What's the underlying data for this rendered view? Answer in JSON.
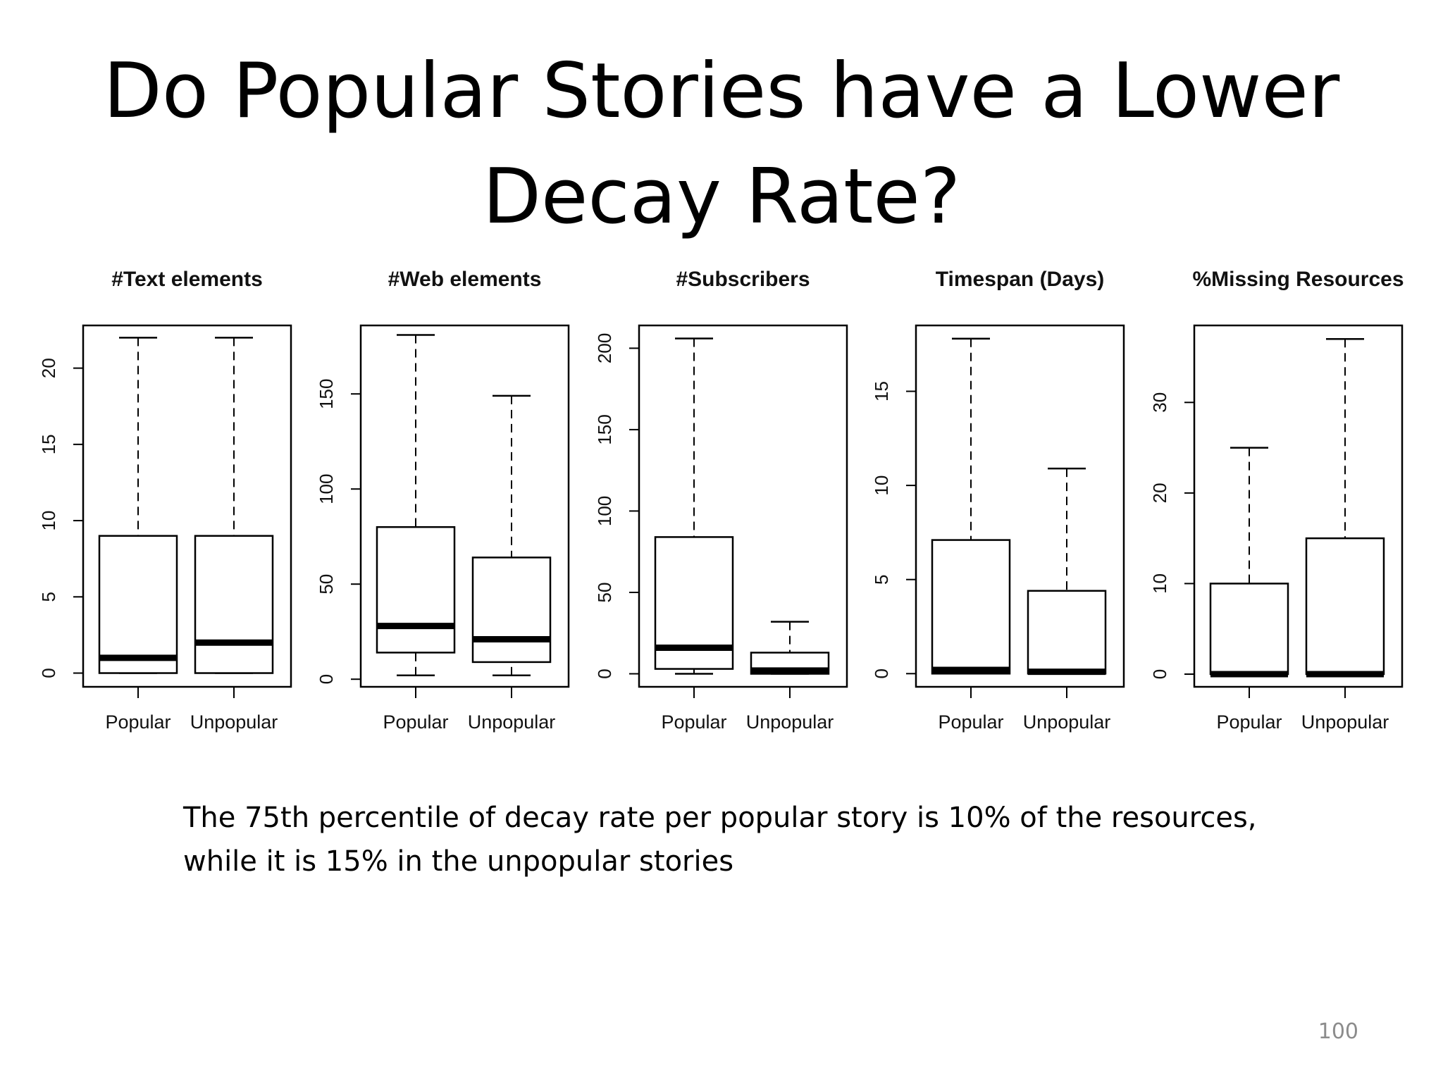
{
  "slide": {
    "title_line1": "Do Popular Stories have a Lower",
    "title_line2": "Decay Rate?",
    "caption_line1": "The 75th percentile of decay rate per popular story is 10% of the resources,",
    "caption_line2": "while it is 15% in the unpopular stories",
    "page_number": "100"
  },
  "chart_data": [
    {
      "type": "boxplot",
      "title": "#Text elements",
      "categories": [
        "Popular",
        "Unpopular"
      ],
      "yticks": [
        0,
        5,
        10,
        15,
        20
      ],
      "ylim": [
        -0.9,
        22.8
      ],
      "boxes": [
        {
          "whisker_low": 0,
          "q1": 0,
          "median": 1,
          "q3": 9,
          "whisker_high": 22
        },
        {
          "whisker_low": 0,
          "q1": 0,
          "median": 2,
          "q3": 9,
          "whisker_high": 22
        }
      ]
    },
    {
      "type": "boxplot",
      "title": "#Web elements",
      "categories": [
        "Popular",
        "Unpopular"
      ],
      "yticks": [
        0,
        50,
        100,
        150
      ],
      "ylim": [
        -4,
        186
      ],
      "boxes": [
        {
          "whisker_low": 2,
          "q1": 14,
          "median": 28,
          "q3": 80,
          "whisker_high": 181
        },
        {
          "whisker_low": 2,
          "q1": 9,
          "median": 21,
          "q3": 64,
          "whisker_high": 149
        }
      ]
    },
    {
      "type": "boxplot",
      "title": "#Subscribers",
      "categories": [
        "Popular",
        "Unpopular"
      ],
      "yticks": [
        0,
        50,
        100,
        150,
        200
      ],
      "ylim": [
        -8,
        214
      ],
      "boxes": [
        {
          "whisker_low": 0,
          "q1": 3,
          "median": 16,
          "q3": 84,
          "whisker_high": 206
        },
        {
          "whisker_low": 0,
          "q1": 0,
          "median": 2,
          "q3": 13,
          "whisker_high": 32
        }
      ]
    },
    {
      "type": "boxplot",
      "title": "Timespan (Days)",
      "categories": [
        "Popular",
        "Unpopular"
      ],
      "yticks": [
        0,
        5,
        10,
        15
      ],
      "ylim": [
        -0.7,
        18.5
      ],
      "boxes": [
        {
          "whisker_low": 0,
          "q1": 0,
          "median": 0.2,
          "q3": 7.1,
          "whisker_high": 17.8
        },
        {
          "whisker_low": 0,
          "q1": 0,
          "median": 0.1,
          "q3": 4.4,
          "whisker_high": 10.9
        }
      ]
    },
    {
      "type": "boxplot",
      "title": "%Missing Resources",
      "categories": [
        "Popular",
        "Unpopular"
      ],
      "yticks": [
        0,
        10,
        20,
        30
      ],
      "ylim": [
        -1.4,
        38.5
      ],
      "boxes": [
        {
          "whisker_low": 0,
          "q1": 0,
          "median": 0,
          "q3": 10,
          "whisker_high": 25
        },
        {
          "whisker_low": 0,
          "q1": 0,
          "median": 0,
          "q3": 15,
          "whisker_high": 37
        }
      ]
    }
  ]
}
